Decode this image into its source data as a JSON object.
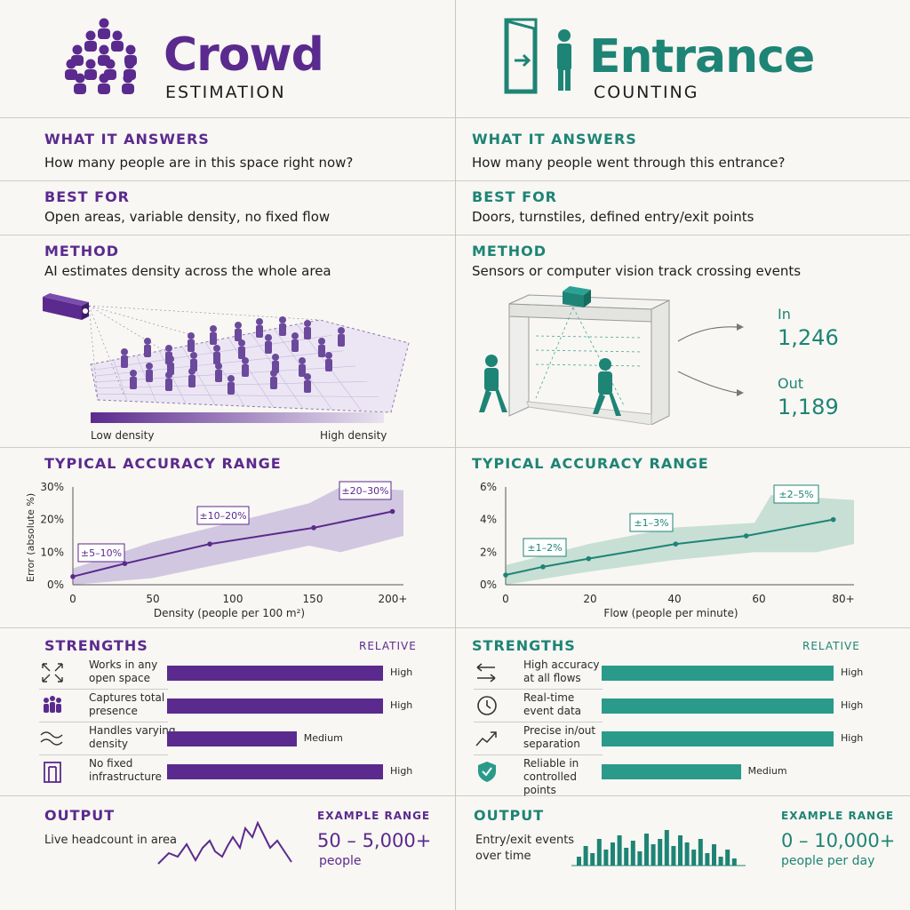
{
  "left": {
    "title": "Crowd",
    "subtitle": "ESTIMATION",
    "what_label": "WHAT IT ANSWERS",
    "what_text": "How many people are in this space right now?",
    "best_label": "BEST FOR",
    "best_text": "Open areas, variable density, no fixed flow",
    "method_label": "METHOD",
    "method_text": "AI estimates density across the whole area",
    "density_low": "Low density",
    "density_high": "High density",
    "accuracy_label": "TYPICAL ACCURACY RANGE",
    "strengths_label": "STRENGTHS",
    "relative_label": "RELATIVE",
    "strengths": [
      {
        "line1": "Works in any",
        "line2": "open space",
        "level": "High",
        "value": 1.0,
        "icon": "expand-arrows-icon"
      },
      {
        "line1": "Captures total",
        "line2": "presence",
        "level": "High",
        "value": 1.0,
        "icon": "people-group-icon"
      },
      {
        "line1": "Handles varying",
        "line2": "density",
        "level": "Medium",
        "value": 0.6,
        "icon": "wave-icon"
      },
      {
        "line1": "No fixed",
        "line2": "infrastructure",
        "level": "High",
        "value": 1.0,
        "icon": "door-frame-icon"
      }
    ],
    "output_label": "OUTPUT",
    "output_text": "Live headcount in area",
    "example_label": "EXAMPLE RANGE",
    "example_value": "50 – 5,000+",
    "example_unit": "people",
    "accent": "#5b2a8e"
  },
  "right": {
    "title": "Entrance",
    "subtitle": "COUNTING",
    "what_label": "WHAT IT ANSWERS",
    "what_text": "How many people went through this entrance?",
    "best_label": "BEST FOR",
    "best_text": "Doors, turnstiles, defined entry/exit points",
    "method_label": "METHOD",
    "method_text": "Sensors or computer vision track crossing events",
    "in_label": "In",
    "in_value": "1,246",
    "out_label": "Out",
    "out_value": "1,189",
    "accuracy_label": "TYPICAL ACCURACY RANGE",
    "strengths_label": "STRENGTHS",
    "relative_label": "RELATIVE",
    "strengths": [
      {
        "line1": "High accuracy",
        "line2": "at all flows",
        "level": "High",
        "value": 1.0,
        "icon": "swap-arrows-icon"
      },
      {
        "line1": "Real-time",
        "line2": "event data",
        "level": "High",
        "value": 1.0,
        "icon": "clock-icon"
      },
      {
        "line1": "Precise in/out",
        "line2": "separation",
        "level": "High",
        "value": 1.0,
        "icon": "trend-arrow-icon"
      },
      {
        "line1": "Reliable in",
        "line2": "controlled points",
        "level": "Medium",
        "value": 0.6,
        "icon": "shield-check-icon"
      }
    ],
    "output_label": "OUTPUT",
    "output_text_1": "Entry/exit events",
    "output_text_2": "over time",
    "example_label": "EXAMPLE RANGE",
    "example_value": "0 – 10,000+",
    "example_unit": "people per day",
    "accent": "#1e8475"
  },
  "chart_data": [
    {
      "type": "line",
      "xlabel": "Density (people per 100 m²)",
      "ylabel": "Error (absolute %)",
      "x_ticks": [
        "0",
        "50",
        "100",
        "150",
        "200+"
      ],
      "y_ticks": [
        "0%",
        "10%",
        "20%",
        "30%"
      ],
      "xlim": [
        0,
        210
      ],
      "ylim": [
        0,
        30
      ],
      "series": [
        {
          "x": [
            0,
            33,
            87,
            153,
            203
          ],
          "y": [
            2.5,
            6.5,
            12.5,
            17.5,
            22.5
          ]
        }
      ],
      "band_upper": [
        [
          0,
          5
        ],
        [
          50,
          13
        ],
        [
          100,
          19
        ],
        [
          150,
          25
        ],
        [
          170,
          30
        ],
        [
          210,
          29
        ]
      ],
      "band_lower": [
        [
          0,
          0
        ],
        [
          50,
          2
        ],
        [
          100,
          7
        ],
        [
          150,
          12
        ],
        [
          170,
          10
        ],
        [
          210,
          15
        ]
      ],
      "annotations": [
        "±5–10%",
        "±10–20%",
        "±20–30%"
      ]
    },
    {
      "type": "line",
      "xlabel": "Flow (people per minute)",
      "x_ticks": [
        "0",
        "20",
        "40",
        "60",
        "80+"
      ],
      "y_ticks": [
        "0%",
        "2%",
        "4%",
        "6%"
      ],
      "xlim": [
        0,
        84
      ],
      "ylim": [
        0,
        6
      ],
      "series": [
        {
          "x": [
            0,
            9,
            20,
            41,
            58,
            79
          ],
          "y": [
            0.6,
            1.1,
            1.6,
            2.5,
            3.0,
            4.0
          ]
        }
      ],
      "band_upper": [
        [
          0,
          1.2
        ],
        [
          20,
          2.5
        ],
        [
          40,
          3.5
        ],
        [
          60,
          3.8
        ],
        [
          64,
          5.5
        ],
        [
          84,
          5.2
        ]
      ],
      "band_lower": [
        [
          0,
          0
        ],
        [
          20,
          0.8
        ],
        [
          40,
          1.5
        ],
        [
          60,
          2.0
        ],
        [
          75,
          2.0
        ],
        [
          84,
          2.5
        ]
      ],
      "annotations": [
        "±1–2%",
        "±1–3%",
        "±2–5%"
      ]
    }
  ]
}
